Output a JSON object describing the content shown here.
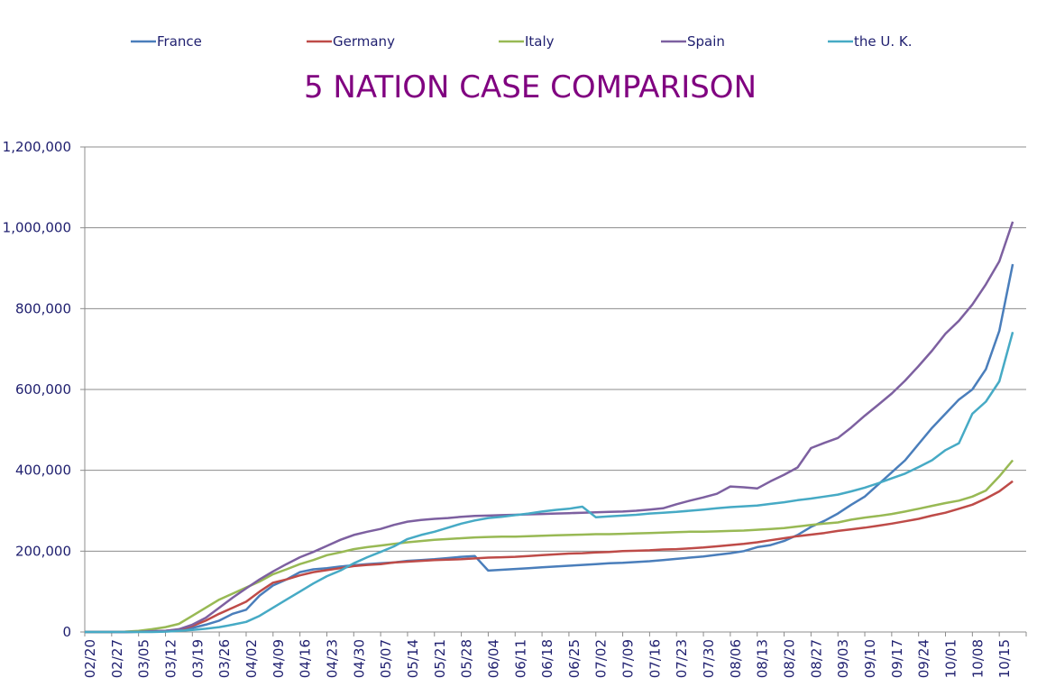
{
  "chart_data": {
    "type": "line",
    "title": "5 NATION CASE COMPARISON",
    "xlabel": "",
    "ylabel": "",
    "ylim": [
      0,
      1200000
    ],
    "yticks": [
      0,
      200000,
      400000,
      600000,
      800000,
      1000000,
      1200000
    ],
    "ytick_labels": [
      "0",
      "200,000",
      "400,000",
      "600,000",
      "800,000",
      "1,000,000",
      "1,200,000"
    ],
    "grid": true,
    "legend_position": "top",
    "x_tick_labels": [
      "02/20",
      "02/27",
      "03/05",
      "03/12",
      "03/19",
      "03/26",
      "04/02",
      "04/09",
      "04/16",
      "04/23",
      "04/30",
      "05/07",
      "05/14",
      "05/21",
      "05/28",
      "06/04",
      "06/11",
      "06/18",
      "06/25",
      "07/02",
      "07/09",
      "07/16",
      "07/23",
      "07/30",
      "08/06",
      "08/13",
      "08/20",
      "08/27",
      "09/03",
      "09/10",
      "09/17",
      "09/24",
      "10/01",
      "10/08",
      "10/15"
    ],
    "x": [
      "02/20",
      "02/24",
      "02/27",
      "03/01",
      "03/05",
      "03/08",
      "03/12",
      "03/15",
      "03/19",
      "03/22",
      "03/26",
      "03/29",
      "04/02",
      "04/05",
      "04/09",
      "04/12",
      "04/16",
      "04/19",
      "04/23",
      "04/26",
      "04/30",
      "05/03",
      "05/07",
      "05/10",
      "05/14",
      "05/17",
      "05/21",
      "05/24",
      "05/28",
      "05/31",
      "06/04",
      "06/07",
      "06/11",
      "06/14",
      "06/18",
      "06/21",
      "06/25",
      "06/28",
      "07/02",
      "07/05",
      "07/09",
      "07/12",
      "07/16",
      "07/19",
      "07/23",
      "07/26",
      "07/30",
      "08/02",
      "08/06",
      "08/09",
      "08/13",
      "08/16",
      "08/20",
      "08/23",
      "08/27",
      "08/30",
      "09/03",
      "09/06",
      "09/10",
      "09/13",
      "09/17",
      "09/20",
      "09/24",
      "09/27",
      "10/01",
      "10/04",
      "10/08",
      "10/11",
      "10/15",
      "10/18"
    ],
    "series": [
      {
        "name": "France",
        "color": "#4a7ebb",
        "values": [
          0,
          0,
          0,
          0,
          500,
          2000,
          3000,
          5000,
          10000,
          18000,
          28000,
          45000,
          55000,
          90000,
          115000,
          130000,
          148000,
          155000,
          158000,
          162000,
          165000,
          168000,
          170000,
          172000,
          176000,
          178000,
          180000,
          183000,
          186000,
          188000,
          152000,
          154000,
          156000,
          158000,
          160000,
          162000,
          164000,
          166000,
          168000,
          170000,
          171000,
          173000,
          175000,
          178000,
          181000,
          184000,
          187000,
          191000,
          195000,
          200000,
          210000,
          215000,
          225000,
          240000,
          260000,
          275000,
          293000,
          315000,
          335000,
          365000,
          395000,
          425000,
          465000,
          505000,
          540000,
          575000,
          600000,
          650000,
          745000,
          910000
        ]
      },
      {
        "name": "Germany",
        "color": "#be4b48",
        "values": [
          0,
          0,
          0,
          0,
          500,
          1500,
          3000,
          6000,
          15000,
          28000,
          45000,
          60000,
          75000,
          100000,
          122000,
          130000,
          140000,
          148000,
          153000,
          158000,
          163000,
          166000,
          168000,
          172000,
          174000,
          176000,
          178000,
          179000,
          180000,
          182000,
          184000,
          185000,
          186000,
          188000,
          190000,
          192000,
          194000,
          195000,
          197000,
          198000,
          200000,
          201000,
          202000,
          204000,
          205000,
          207000,
          209000,
          212000,
          215000,
          218000,
          222000,
          227000,
          232000,
          237000,
          241000,
          245000,
          250000,
          254000,
          258000,
          263000,
          268000,
          274000,
          280000,
          288000,
          295000,
          305000,
          315000,
          330000,
          348000,
          373000
        ]
      },
      {
        "name": "Italy",
        "color": "#98b954",
        "values": [
          0,
          0,
          0,
          1000,
          3000,
          7000,
          12000,
          20000,
          40000,
          60000,
          80000,
          95000,
          110000,
          125000,
          143000,
          155000,
          168000,
          178000,
          190000,
          197000,
          205000,
          210000,
          214000,
          218000,
          222000,
          225000,
          228000,
          230000,
          232000,
          234000,
          235000,
          236000,
          236000,
          237000,
          238000,
          239000,
          240000,
          241000,
          242000,
          242000,
          243000,
          244000,
          245000,
          246000,
          247000,
          248000,
          248000,
          249000,
          250000,
          251000,
          253000,
          255000,
          257000,
          261000,
          265000,
          268000,
          271000,
          278000,
          283000,
          287000,
          292000,
          298000,
          305000,
          312000,
          319000,
          325000,
          335000,
          350000,
          385000,
          425000
        ]
      },
      {
        "name": "Spain",
        "color": "#7d60a0",
        "values": [
          0,
          0,
          0,
          0,
          500,
          2000,
          3000,
          7000,
          18000,
          35000,
          60000,
          85000,
          108000,
          130000,
          150000,
          168000,
          185000,
          198000,
          213000,
          228000,
          240000,
          248000,
          255000,
          265000,
          273000,
          277000,
          280000,
          282000,
          285000,
          287000,
          288000,
          289000,
          290000,
          291000,
          292000,
          293000,
          294000,
          295000,
          296000,
          297000,
          298000,
          300000,
          303000,
          306000,
          316000,
          325000,
          333000,
          342000,
          360000,
          358000,
          355000,
          373000,
          389000,
          407000,
          455000,
          468000,
          480000,
          506000,
          535000,
          562000,
          590000,
          622000,
          658000,
          696000,
          738000,
          770000,
          810000,
          860000,
          917000,
          1015000
        ]
      },
      {
        "name": "the U. K.",
        "color": "#46aac5",
        "values": [
          0,
          0,
          0,
          0,
          0,
          0,
          1000,
          3000,
          5000,
          8000,
          12000,
          18000,
          25000,
          40000,
          60000,
          80000,
          100000,
          120000,
          138000,
          152000,
          170000,
          185000,
          198000,
          212000,
          230000,
          240000,
          248000,
          258000,
          268000,
          276000,
          282000,
          285000,
          289000,
          293000,
          298000,
          302000,
          305000,
          310000,
          284000,
          286000,
          288000,
          290000,
          293000,
          295000,
          297000,
          300000,
          303000,
          306000,
          309000,
          311000,
          313000,
          317000,
          321000,
          326000,
          330000,
          335000,
          340000,
          348000,
          357000,
          368000,
          380000,
          392000,
          408000,
          425000,
          450000,
          467000,
          540000,
          570000,
          620000,
          742000
        ]
      }
    ]
  }
}
